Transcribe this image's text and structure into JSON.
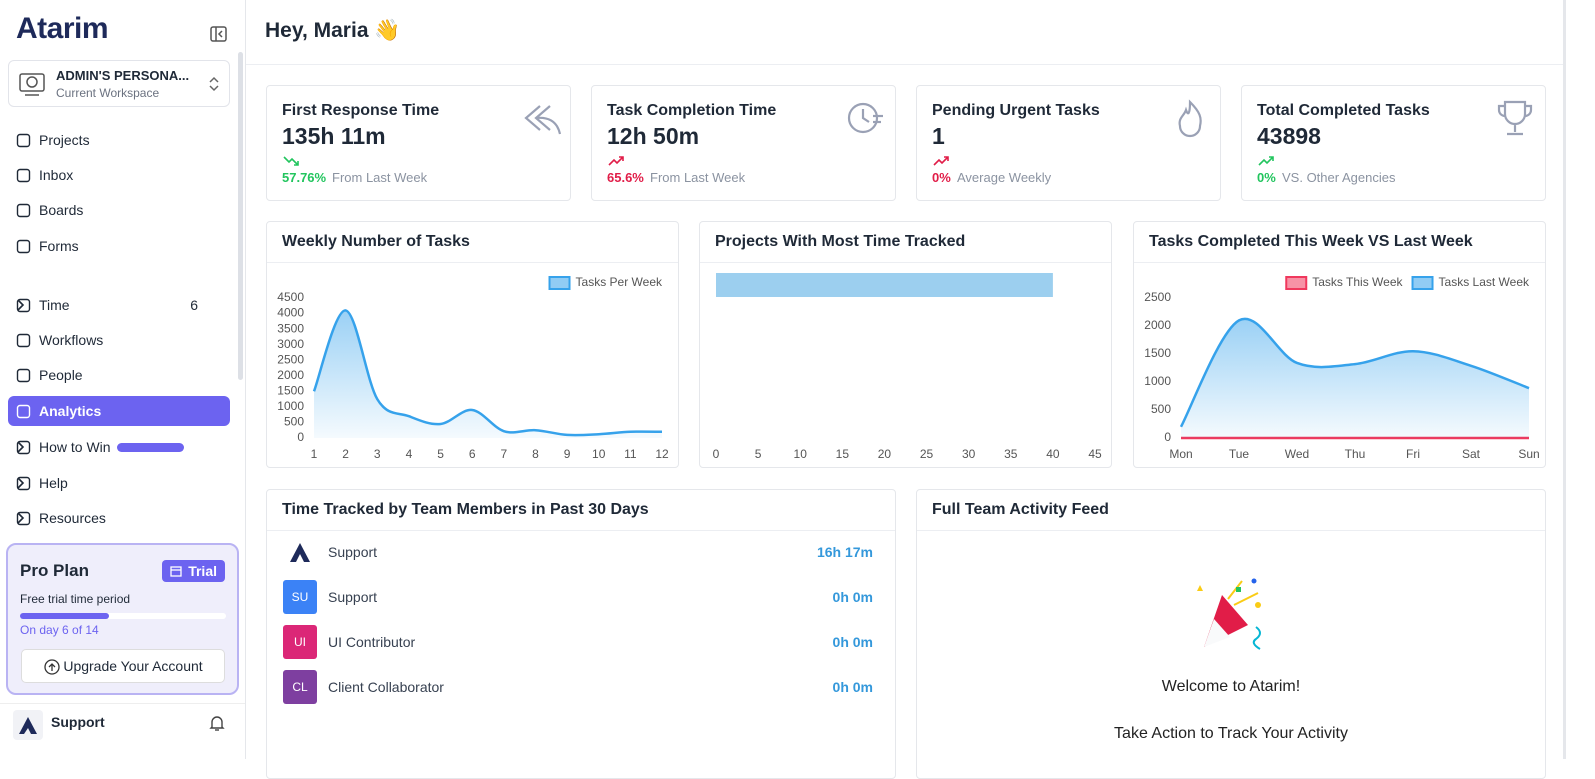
{
  "sidebar": {
    "logo": "Atarim",
    "workspace": {
      "name": "ADMIN'S PERSONA...",
      "subtitle": "Current Workspace"
    },
    "nav": [
      {
        "label": "Projects"
      },
      {
        "label": "Inbox"
      },
      {
        "label": "Boards"
      },
      {
        "label": "Forms"
      },
      {
        "label": "Time",
        "badge": "6"
      },
      {
        "label": "Workflows"
      },
      {
        "label": "People"
      },
      {
        "label": "Analytics"
      },
      {
        "label": "How to Win"
      },
      {
        "label": "Help"
      },
      {
        "label": "Resources"
      }
    ],
    "plan": {
      "title": "Pro Plan",
      "badge": "Trial",
      "subtitle": "Free trial time period",
      "progress": "On day 6 of 14",
      "button": "Upgrade Your Account"
    },
    "user": {
      "name": "Support"
    }
  },
  "header": {
    "greeting": "Hey, Maria 👋"
  },
  "stats": [
    {
      "title": "First Response Time",
      "value": "135h 11m",
      "change": "57.76%",
      "change_label": "From Last Week"
    },
    {
      "title": "Task Completion Time",
      "value": "12h 50m",
      "change": "65.6%",
      "change_label": "From Last Week"
    },
    {
      "title": "Pending Urgent Tasks",
      "value": "1",
      "change": "0%",
      "change_label": "Average Weekly"
    },
    {
      "title": "Total Completed Tasks",
      "value": "43898",
      "change": "0%",
      "change_label": "VS. Other Agencies"
    }
  ],
  "chart_data": [
    {
      "type": "line",
      "title": "Weekly Number of Tasks",
      "x": [
        1,
        2,
        3,
        4,
        5,
        6,
        7,
        8,
        9,
        10,
        11,
        12
      ],
      "xlim": [
        1,
        12
      ],
      "xticks": [
        1,
        2,
        3,
        4,
        5,
        6,
        7,
        8,
        9,
        10,
        11,
        12
      ],
      "series": [
        {
          "name": "Tasks Per Week",
          "color": "#36a2eb",
          "values": [
            1500,
            4100,
            1250,
            700,
            450,
            900,
            220,
            250,
            100,
            120,
            200,
            200
          ]
        }
      ],
      "ylim": [
        0,
        4500
      ],
      "yticks": [
        0,
        500,
        1000,
        1500,
        2000,
        2500,
        3000,
        3500,
        4000,
        4500
      ],
      "grid": false,
      "legend": "top-right"
    },
    {
      "type": "bar",
      "orientation": "horizontal",
      "title": "Projects With Most Time Tracked",
      "categories": [
        null
      ],
      "values": [
        40
      ],
      "color": "#9ccfef",
      "xlim": [
        0,
        45
      ],
      "xticks": [
        0,
        5,
        10,
        15,
        20,
        25,
        30,
        35,
        40,
        45
      ],
      "grid": false
    },
    {
      "type": "line",
      "title": "Tasks Completed This Week VS Last Week",
      "categories": [
        "Mon",
        "Tue",
        "Wed",
        "Thu",
        "Fri",
        "Sat",
        "Sun"
      ],
      "series": [
        {
          "name": "Tasks This Week",
          "color": "#f0385d",
          "values": [
            0,
            0,
            0,
            0,
            0,
            0,
            0
          ]
        },
        {
          "name": "Tasks Last Week",
          "color": "#36a2eb",
          "values": [
            200,
            2100,
            1340,
            1320,
            1550,
            1290,
            890
          ]
        }
      ],
      "ylim": [
        0,
        2500
      ],
      "yticks": [
        0,
        500,
        1000,
        1500,
        2000,
        2500
      ],
      "grid": false,
      "legend": "top-right"
    }
  ],
  "time_tracked": {
    "title": "Time Tracked by Team Members in Past 30 Days",
    "rows": [
      {
        "name": "Support",
        "time": "16h 17m"
      },
      {
        "initials": "SU",
        "color": "#3b82f6",
        "name": "Support",
        "time": "0h 0m"
      },
      {
        "initials": "UI",
        "color": "#db2777",
        "name": "UI Contributor",
        "time": "0h 0m"
      },
      {
        "initials": "CL",
        "color": "#7e3fa0",
        "name": "Client Collaborator",
        "time": "0h 0m"
      }
    ]
  },
  "activity_feed": {
    "title": "Full Team Activity Feed",
    "welcome": "Welcome to Atarim!",
    "prompt": "Take Action to Track Your Activity"
  }
}
